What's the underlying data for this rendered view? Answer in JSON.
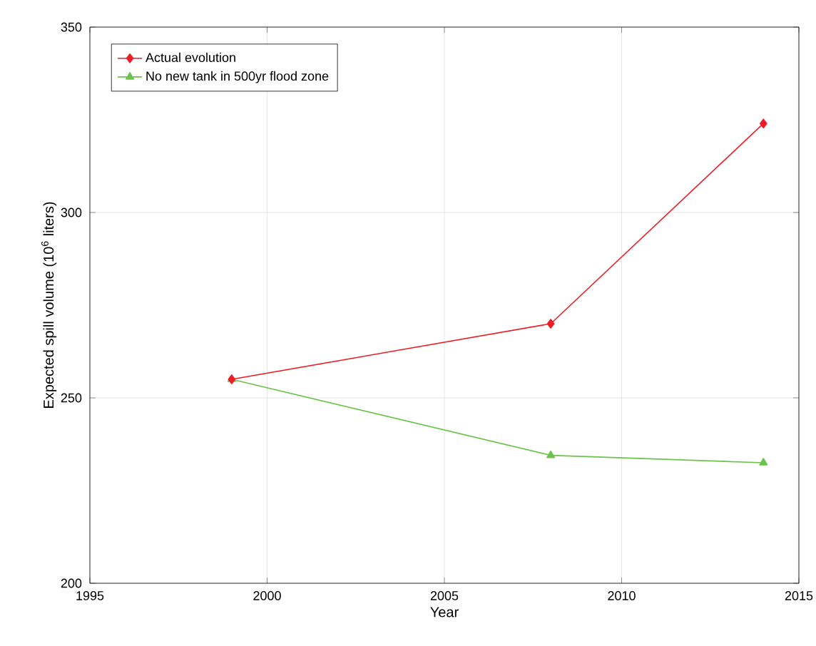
{
  "chart_data": {
    "type": "line",
    "xlabel": "Year",
    "ylabel": "Expected spill volume (10$^{6}$ liters)",
    "x": [
      1999,
      2008,
      2014
    ],
    "series": [
      {
        "name": "Actual evolution",
        "color": "#ee1c25",
        "marker": "diamond",
        "values": [
          255,
          270,
          324
        ]
      },
      {
        "name": "No new tank in 500yr flood zone",
        "color": "#6cc24a",
        "marker": "triangle",
        "values": [
          255,
          234.5,
          232.5
        ]
      }
    ],
    "xlim": [
      1995,
      2015
    ],
    "xticks": [
      1995,
      2000,
      2005,
      2010,
      2015
    ],
    "ylim": [
      200,
      350
    ],
    "yticks": [
      200,
      250,
      300,
      350
    ],
    "grid": true,
    "legend": "top left",
    "line_style": "solid"
  }
}
